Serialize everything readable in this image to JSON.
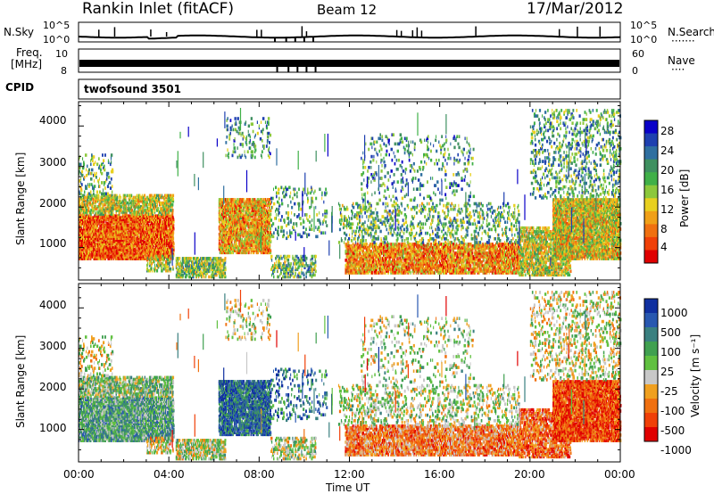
{
  "header": {
    "station": "Rankin Inlet (fitACF)",
    "beam": "Beam 12",
    "date": "17/Mar/2012"
  },
  "noise_panel": {
    "left_label": "N.Sky",
    "right_label": "N.Search",
    "right_dots": "·······",
    "left_ticks": [
      "10^5",
      "10^0"
    ],
    "right_ticks": [
      "10^5",
      "10^0"
    ]
  },
  "freq_panel": {
    "left_label_1": "Freq.",
    "left_label_2": "[MHz]",
    "right_label": "Nave",
    "right_dots": "····",
    "left_ticks": [
      "10",
      "8"
    ],
    "right_ticks": [
      "60",
      "0"
    ]
  },
  "cpid": {
    "label": "CPID",
    "value": "twofsound 3501"
  },
  "chart_data": [
    {
      "type": "heatmap",
      "ylabel": "Slant Range [km]",
      "y_ticks": [
        "4000",
        "3000",
        "2000",
        "1000"
      ],
      "ylim": [
        200,
        4600
      ],
      "colorbar": {
        "label": "Power [dB]",
        "ticks": [
          "28",
          "24",
          "20",
          "16",
          "12",
          "8",
          "4"
        ],
        "colors": [
          "#0a00c8",
          "#1e40b0",
          "#2f6fa0",
          "#3f9060",
          "#40b048",
          "#8cc83c",
          "#e8d020",
          "#f0a018",
          "#f07010",
          "#f04008",
          "#e00000"
        ]
      }
    },
    {
      "type": "heatmap",
      "ylabel": "Slant Range [km]",
      "y_ticks": [
        "4000",
        "3000",
        "2000",
        "1000"
      ],
      "ylim": [
        200,
        4600
      ],
      "colorbar": {
        "label": "Velocity [m s⁻¹]",
        "ticks": [
          "1000",
          "500",
          "100",
          "25",
          "-25",
          "-100",
          "-500",
          "-1000"
        ],
        "colors": [
          "#1030a0",
          "#2858b0",
          "#3a8080",
          "#40a050",
          "#60c040",
          "#c8c8c8",
          "#f0a020",
          "#f07010",
          "#f04008",
          "#e00000"
        ]
      }
    }
  ],
  "x_axis": {
    "label": "Time UT",
    "ticks": [
      "00:00",
      "04:00",
      "08:00",
      "12:00",
      "16:00",
      "20:00",
      "00:00"
    ]
  }
}
